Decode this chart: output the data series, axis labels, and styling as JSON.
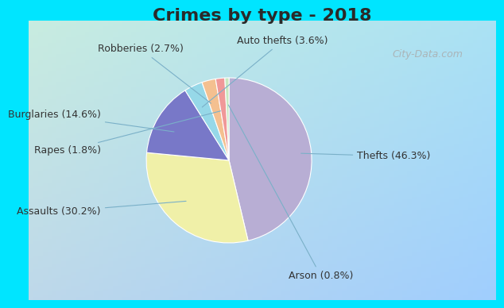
{
  "title": "Crimes by type - 2018",
  "labels": [
    "Thefts",
    "Assaults",
    "Burglaries",
    "Auto thefts",
    "Robberies",
    "Rapes",
    "Arson"
  ],
  "values": [
    46.3,
    30.2,
    14.6,
    3.6,
    2.7,
    1.8,
    0.8
  ],
  "colors": [
    "#b8aed4",
    "#f0f0a8",
    "#7878c8",
    "#96d8e8",
    "#f4c090",
    "#f09898",
    "#c8e8c0"
  ],
  "label_texts": [
    "Thefts (46.3%)",
    "Assaults (30.2%)",
    "Burglaries (14.6%)",
    "Auto thefts (3.6%)",
    "Robberies (2.7%)",
    "Rapes (1.8%)",
    "Arson (0.8%)"
  ],
  "cyan_strip_color": "#00e5ff",
  "main_bg_top_left": "#c8ece0",
  "main_bg_bottom_right": "#d8eef8",
  "startangle": 90,
  "title_fontsize": 16,
  "label_fontsize": 9,
  "watermark": "City-Data.com"
}
